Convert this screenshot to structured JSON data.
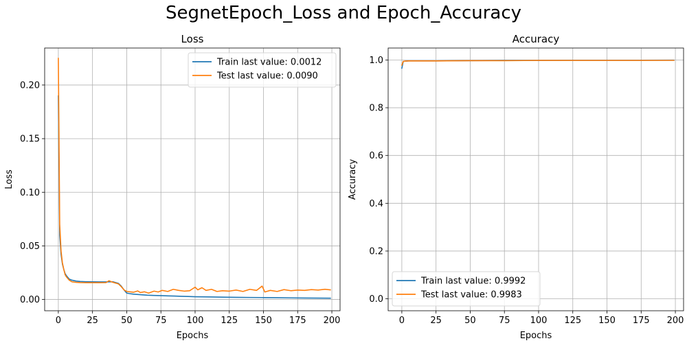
{
  "figure": {
    "title": "SegnetEpoch_Loss and Epoch_Accuracy"
  },
  "colors": {
    "train": "#1f77b4",
    "test": "#ff7f0e"
  },
  "chart_data": [
    {
      "type": "line",
      "title": "Loss",
      "xlabel": "Epochs",
      "ylabel": "Loss",
      "xlim": [
        -10,
        206
      ],
      "ylim": [
        -0.0105,
        0.2345
      ],
      "xticks": [
        0,
        25,
        50,
        75,
        100,
        125,
        150,
        175,
        200
      ],
      "xtick_labels": [
        "0",
        "25",
        "50",
        "75",
        "100",
        "125",
        "150",
        "175",
        "200"
      ],
      "yticks": [
        0.0,
        0.05,
        0.1,
        0.15,
        0.2
      ],
      "ytick_labels": [
        "0.00",
        "0.05",
        "0.10",
        "0.15",
        "0.20"
      ],
      "grid": true,
      "legend_position": "upper right",
      "series": [
        {
          "name": "Train last value: 0.0012",
          "color": "#1f77b4",
          "x": [
            0,
            1,
            2,
            3,
            4,
            5,
            6,
            8,
            10,
            13,
            16,
            20,
            25,
            30,
            35,
            40,
            44,
            46,
            48,
            50,
            52,
            55,
            60,
            65,
            70,
            75,
            80,
            85,
            90,
            95,
            100,
            110,
            120,
            130,
            140,
            150,
            160,
            170,
            180,
            190,
            199
          ],
          "y": [
            0.19,
            0.06,
            0.042,
            0.033,
            0.028,
            0.024,
            0.022,
            0.019,
            0.018,
            0.0172,
            0.0168,
            0.0166,
            0.0165,
            0.0164,
            0.0164,
            0.0165,
            0.015,
            0.0125,
            0.009,
            0.006,
            0.0055,
            0.005,
            0.0045,
            0.004,
            0.0038,
            0.0036,
            0.0034,
            0.0032,
            0.003,
            0.0028,
            0.0026,
            0.0024,
            0.0022,
            0.002,
            0.0019,
            0.0018,
            0.0017,
            0.0015,
            0.0014,
            0.0013,
            0.0012
          ]
        },
        {
          "name": "Test last value: 0.0090",
          "color": "#ff7f0e",
          "x": [
            0,
            1,
            2,
            3,
            4,
            5,
            6,
            8,
            10,
            13,
            16,
            20,
            25,
            30,
            35,
            37,
            40,
            44,
            46,
            48,
            50,
            52,
            55,
            58,
            60,
            63,
            66,
            70,
            73,
            76,
            80,
            84,
            88,
            92,
            96,
            100,
            102,
            105,
            108,
            112,
            116,
            120,
            125,
            130,
            135,
            140,
            145,
            149,
            151,
            155,
            160,
            165,
            170,
            175,
            180,
            185,
            190,
            195,
            199
          ],
          "y": [
            0.225,
            0.07,
            0.045,
            0.034,
            0.028,
            0.023,
            0.021,
            0.018,
            0.0165,
            0.016,
            0.0158,
            0.0157,
            0.0157,
            0.0157,
            0.0158,
            0.0175,
            0.016,
            0.0145,
            0.012,
            0.009,
            0.0075,
            0.0072,
            0.0068,
            0.008,
            0.0065,
            0.0072,
            0.006,
            0.0078,
            0.007,
            0.0085,
            0.0075,
            0.0095,
            0.0085,
            0.0078,
            0.0082,
            0.0115,
            0.009,
            0.011,
            0.0085,
            0.0095,
            0.0075,
            0.0082,
            0.0078,
            0.0088,
            0.0075,
            0.0095,
            0.0085,
            0.0125,
            0.007,
            0.0085,
            0.0075,
            0.0092,
            0.0082,
            0.0088,
            0.0085,
            0.0092,
            0.0088,
            0.0095,
            0.009
          ]
        }
      ]
    },
    {
      "type": "line",
      "title": "Accuracy",
      "xlabel": "Epochs",
      "ylabel": "Accuracy",
      "xlim": [
        -10,
        206
      ],
      "ylim": [
        -0.05,
        1.05
      ],
      "xticks": [
        0,
        25,
        50,
        75,
        100,
        125,
        150,
        175,
        200
      ],
      "xtick_labels": [
        "0",
        "25",
        "50",
        "75",
        "100",
        "125",
        "150",
        "175",
        "200"
      ],
      "yticks": [
        0.0,
        0.2,
        0.4,
        0.6,
        0.8,
        1.0
      ],
      "ytick_labels": [
        "0.0",
        "0.2",
        "0.4",
        "0.6",
        "0.8",
        "1.0"
      ],
      "grid": true,
      "legend_position": "lower left",
      "series": [
        {
          "name": "Train last value: 0.9992",
          "color": "#1f77b4",
          "x": [
            0,
            1,
            2,
            5,
            10,
            25,
            50,
            75,
            100,
            125,
            150,
            175,
            199
          ],
          "y": [
            0.965,
            0.993,
            0.995,
            0.996,
            0.996,
            0.996,
            0.997,
            0.998,
            0.998,
            0.999,
            0.999,
            0.999,
            0.9992
          ]
        },
        {
          "name": "Test last value: 0.9983",
          "color": "#ff7f0e",
          "x": [
            0,
            1,
            2,
            5,
            10,
            25,
            50,
            75,
            100,
            125,
            150,
            175,
            199
          ],
          "y": [
            0.978,
            0.994,
            0.995,
            0.996,
            0.996,
            0.996,
            0.997,
            0.997,
            0.998,
            0.998,
            0.998,
            0.998,
            0.9983
          ]
        }
      ]
    }
  ]
}
